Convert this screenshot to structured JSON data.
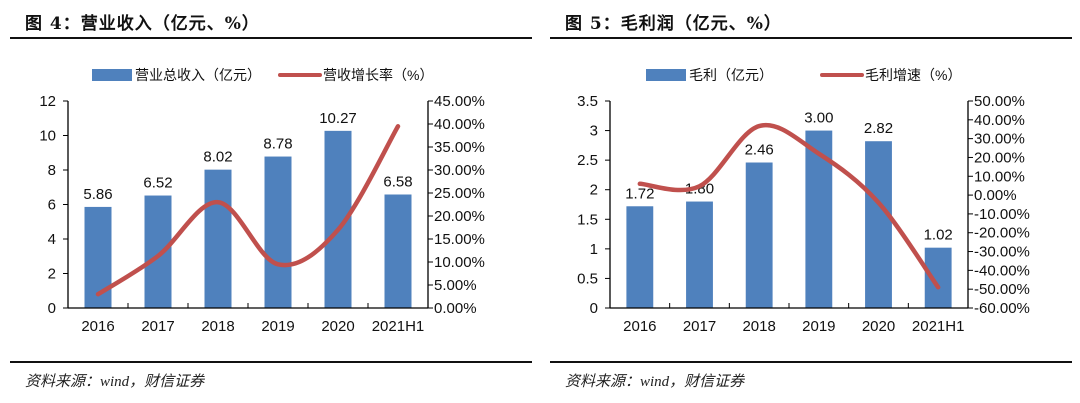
{
  "chart_data": [
    {
      "type": "bar",
      "title": "图 4：营业收入（亿元、%）",
      "source": "资料来源：wind，财信证券",
      "categories": [
        "2016",
        "2017",
        "2018",
        "2019",
        "2020",
        "2021H1"
      ],
      "series": [
        {
          "name": "营业总收入（亿元）",
          "type": "bar",
          "axis": "left",
          "color": "#4F81BD",
          "values": [
            5.86,
            6.52,
            8.02,
            8.78,
            10.27,
            6.58
          ],
          "labels": [
            "5.86",
            "6.52",
            "8.02",
            "8.78",
            "10.27",
            "6.58"
          ]
        },
        {
          "name": "营收增长率（%）",
          "type": "line",
          "axis": "right",
          "color": "#C0504D",
          "values": [
            3.0,
            11.3,
            23.0,
            9.5,
            17.0,
            39.5
          ]
        }
      ],
      "left_axis": {
        "min": 0,
        "max": 12,
        "ticks": [
          0,
          2,
          4,
          6,
          8,
          10,
          12
        ],
        "tick_labels": [
          "0",
          "2",
          "4",
          "6",
          "8",
          "10",
          "12"
        ]
      },
      "right_axis": {
        "min": 0,
        "max": 45,
        "ticks": [
          0,
          5,
          10,
          15,
          20,
          25,
          30,
          35,
          40,
          45
        ],
        "tick_labels": [
          "0.00%",
          "5.00%",
          "10.00%",
          "15.00%",
          "20.00%",
          "25.00%",
          "30.00%",
          "35.00%",
          "40.00%",
          "45.00%"
        ]
      },
      "legend": "top",
      "grid": false
    },
    {
      "type": "bar",
      "title": "图 5：毛利润（亿元、%）",
      "source": "资料来源：wind，财信证券",
      "categories": [
        "2016",
        "2017",
        "2018",
        "2019",
        "2020",
        "2021H1"
      ],
      "series": [
        {
          "name": "毛利（亿元）",
          "type": "bar",
          "axis": "left",
          "color": "#4F81BD",
          "values": [
            1.72,
            1.8,
            2.46,
            3.0,
            2.82,
            1.02
          ],
          "labels": [
            "1.72",
            "1.80",
            "2.46",
            "3.00",
            "2.82",
            "1.02"
          ]
        },
        {
          "name": "毛利增速（%）",
          "type": "line",
          "axis": "right",
          "color": "#C0504D",
          "values": [
            6.0,
            4.7,
            36.7,
            22.0,
            -4.0,
            -49.0
          ]
        }
      ],
      "left_axis": {
        "min": 0,
        "max": 3.5,
        "ticks": [
          0,
          0.5,
          1,
          1.5,
          2,
          2.5,
          3,
          3.5
        ],
        "tick_labels": [
          "0",
          "0.5",
          "1",
          "1.5",
          "2",
          "2.5",
          "3",
          "3.5"
        ]
      },
      "right_axis": {
        "min": -60,
        "max": 50,
        "ticks": [
          -60,
          -50,
          -40,
          -30,
          -20,
          -10,
          0,
          10,
          20,
          30,
          40,
          50
        ],
        "tick_labels": [
          "-60.00%",
          "-50.00%",
          "-40.00%",
          "-30.00%",
          "-20.00%",
          "-10.00%",
          "0.00%",
          "10.00%",
          "20.00%",
          "30.00%",
          "40.00%",
          "50.00%"
        ]
      },
      "legend": "top",
      "grid": false
    }
  ]
}
